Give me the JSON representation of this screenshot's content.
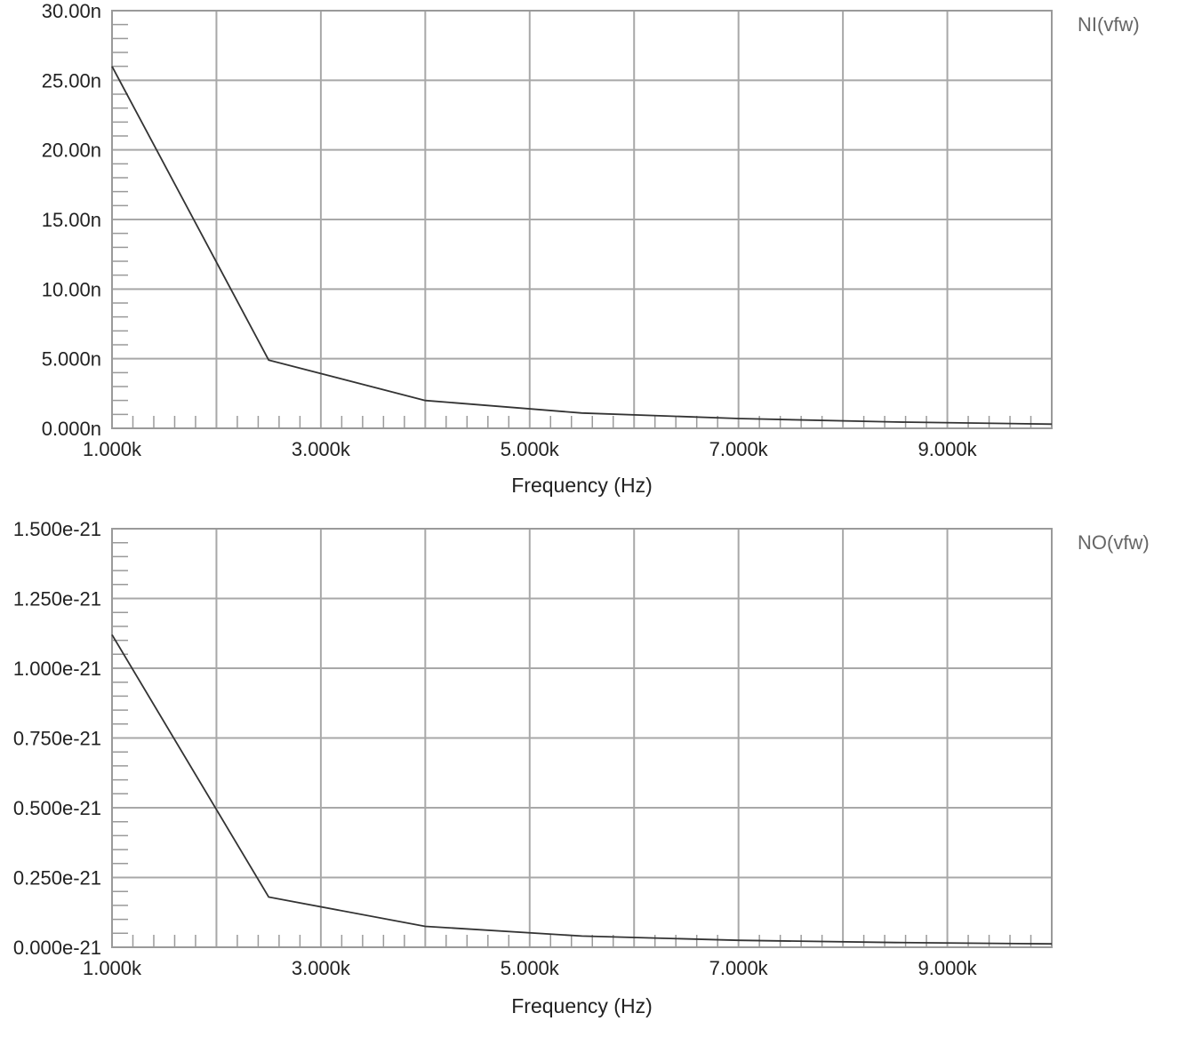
{
  "chart_data": [
    {
      "type": "line",
      "title": "",
      "xlabel": "Frequency (Hz)",
      "ylabel": "",
      "legend": "NI(vfw)",
      "legend_position": "top-right",
      "xlim": [
        1000,
        10000
      ],
      "ylim": [
        0,
        30
      ],
      "grid": true,
      "x_ticks": [
        1000,
        3000,
        5000,
        7000,
        9000
      ],
      "x_tick_labels": [
        "1.000k",
        "3.000k",
        "5.000k",
        "7.000k",
        "9.000k"
      ],
      "y_ticks": [
        0,
        5,
        10,
        15,
        20,
        25,
        30
      ],
      "y_tick_labels": [
        "0.000n",
        "5.000n",
        "10.00n",
        "15.00n",
        "20.00n",
        "25.00n",
        "30.00n"
      ],
      "y_unit_suffix": "n",
      "series": [
        {
          "name": "NI(vfw)",
          "x": [
            1000,
            2500,
            4000,
            5500,
            7000,
            8500,
            10000
          ],
          "y": [
            26.0,
            4.9,
            2.0,
            1.1,
            0.7,
            0.45,
            0.3
          ]
        }
      ]
    },
    {
      "type": "line",
      "title": "",
      "xlabel": "Frequency (Hz)",
      "ylabel": "",
      "legend": "NO(vfw)",
      "legend_position": "top-right",
      "xlim": [
        1000,
        10000
      ],
      "ylim": [
        0,
        1.5
      ],
      "grid": true,
      "x_ticks": [
        1000,
        3000,
        5000,
        7000,
        9000
      ],
      "x_tick_labels": [
        "1.000k",
        "3.000k",
        "5.000k",
        "7.000k",
        "9.000k"
      ],
      "y_ticks": [
        0,
        0.25,
        0.5,
        0.75,
        1.0,
        1.25,
        1.5
      ],
      "y_tick_labels": [
        "0.000e-21",
        "0.250e-21",
        "0.500e-21",
        "0.750e-21",
        "1.000e-21",
        "1.250e-21",
        "1.500e-21"
      ],
      "y_unit_suffix": "e-21",
      "series": [
        {
          "name": "NO(vfw)",
          "x": [
            1000,
            2500,
            4000,
            5500,
            7000,
            8500,
            10000
          ],
          "y": [
            1.12,
            0.18,
            0.075,
            0.04,
            0.025,
            0.017,
            0.012
          ]
        }
      ]
    }
  ]
}
